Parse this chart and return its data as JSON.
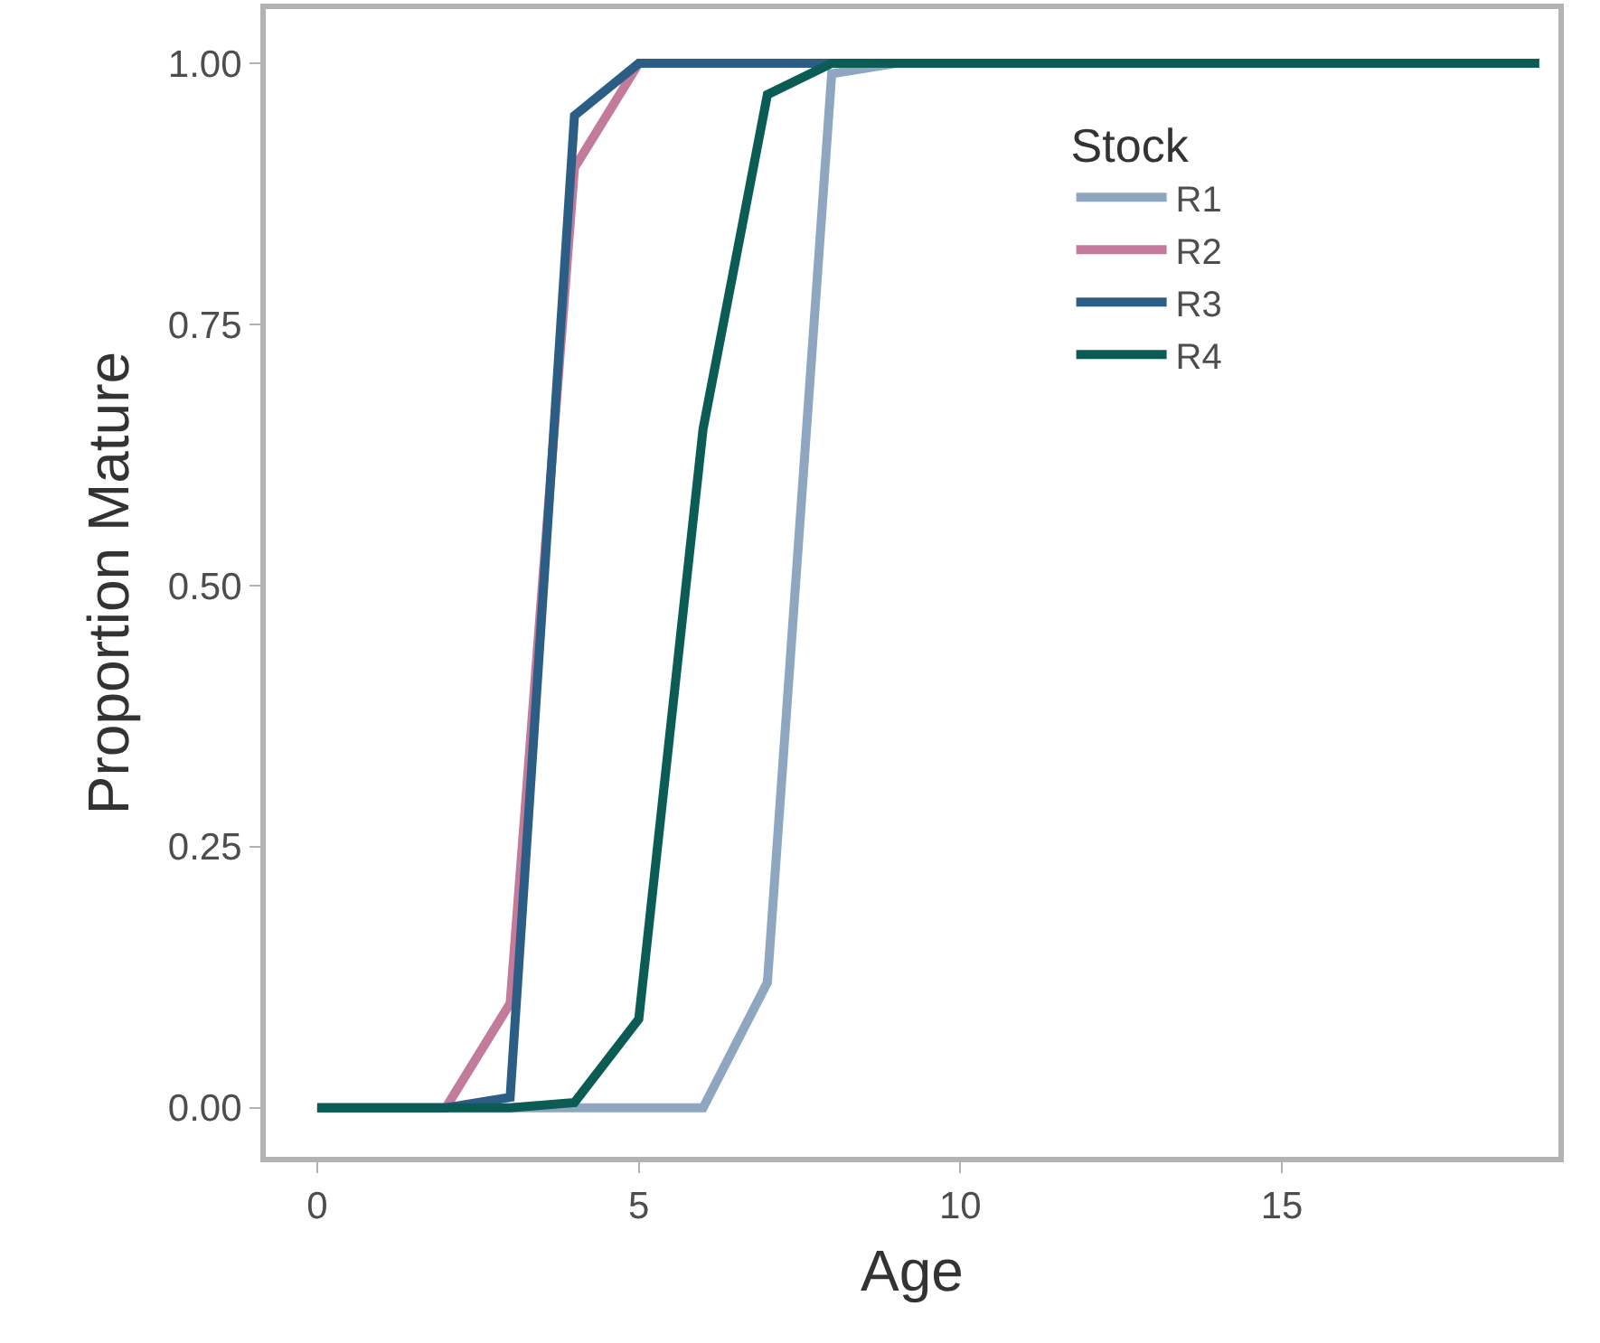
{
  "chart_data": {
    "type": "line",
    "xlabel": "Age",
    "ylabel": "Proportion Mature",
    "legend_title": "Stock",
    "legend": "top right",
    "grid": false,
    "marker": "none",
    "line_style": "solid",
    "x": [
      0,
      1,
      2,
      3,
      4,
      5,
      6,
      7,
      8,
      9,
      10,
      11,
      12,
      13,
      14,
      15,
      16,
      17,
      18,
      19
    ],
    "series": [
      {
        "name": "R1",
        "color": "#8ea6c0",
        "values": [
          0,
          0,
          0,
          0,
          0,
          0,
          0,
          0.12,
          0.99,
          1,
          null,
          null,
          null,
          null,
          null,
          null,
          null,
          null,
          null,
          null
        ]
      },
      {
        "name": "R2",
        "color": "#c27b9b",
        "values": [
          null,
          null,
          0,
          0.1,
          0.9,
          1,
          null,
          null,
          null,
          null,
          null,
          null,
          null,
          null,
          null,
          null,
          null,
          null,
          null,
          null
        ]
      },
      {
        "name": "R3",
        "color": "#2c5d84",
        "values": [
          0,
          0,
          0,
          0.01,
          0.95,
          1,
          1,
          1,
          1,
          1,
          1,
          1,
          1,
          1,
          1,
          1,
          1,
          1,
          1,
          1
        ]
      },
      {
        "name": "R4",
        "color": "#0a5c55",
        "values": [
          0,
          0,
          0,
          0,
          0.005,
          0.085,
          0.65,
          0.97,
          1,
          1,
          1,
          1,
          1,
          1,
          1,
          1,
          1,
          1,
          1,
          1
        ]
      }
    ],
    "xlim": [
      -0.8,
      19.3
    ],
    "ylim": [
      -0.047,
      1.052
    ],
    "xticks": [
      0,
      5,
      10,
      15
    ],
    "yticks": [
      {
        "value": 0,
        "label": "0.00"
      },
      {
        "value": 0.25,
        "label": "0.25"
      },
      {
        "value": 0.5,
        "label": "0.50"
      },
      {
        "value": 0.75,
        "label": "0.75"
      },
      {
        "value": 1,
        "label": "1.00"
      }
    ]
  }
}
